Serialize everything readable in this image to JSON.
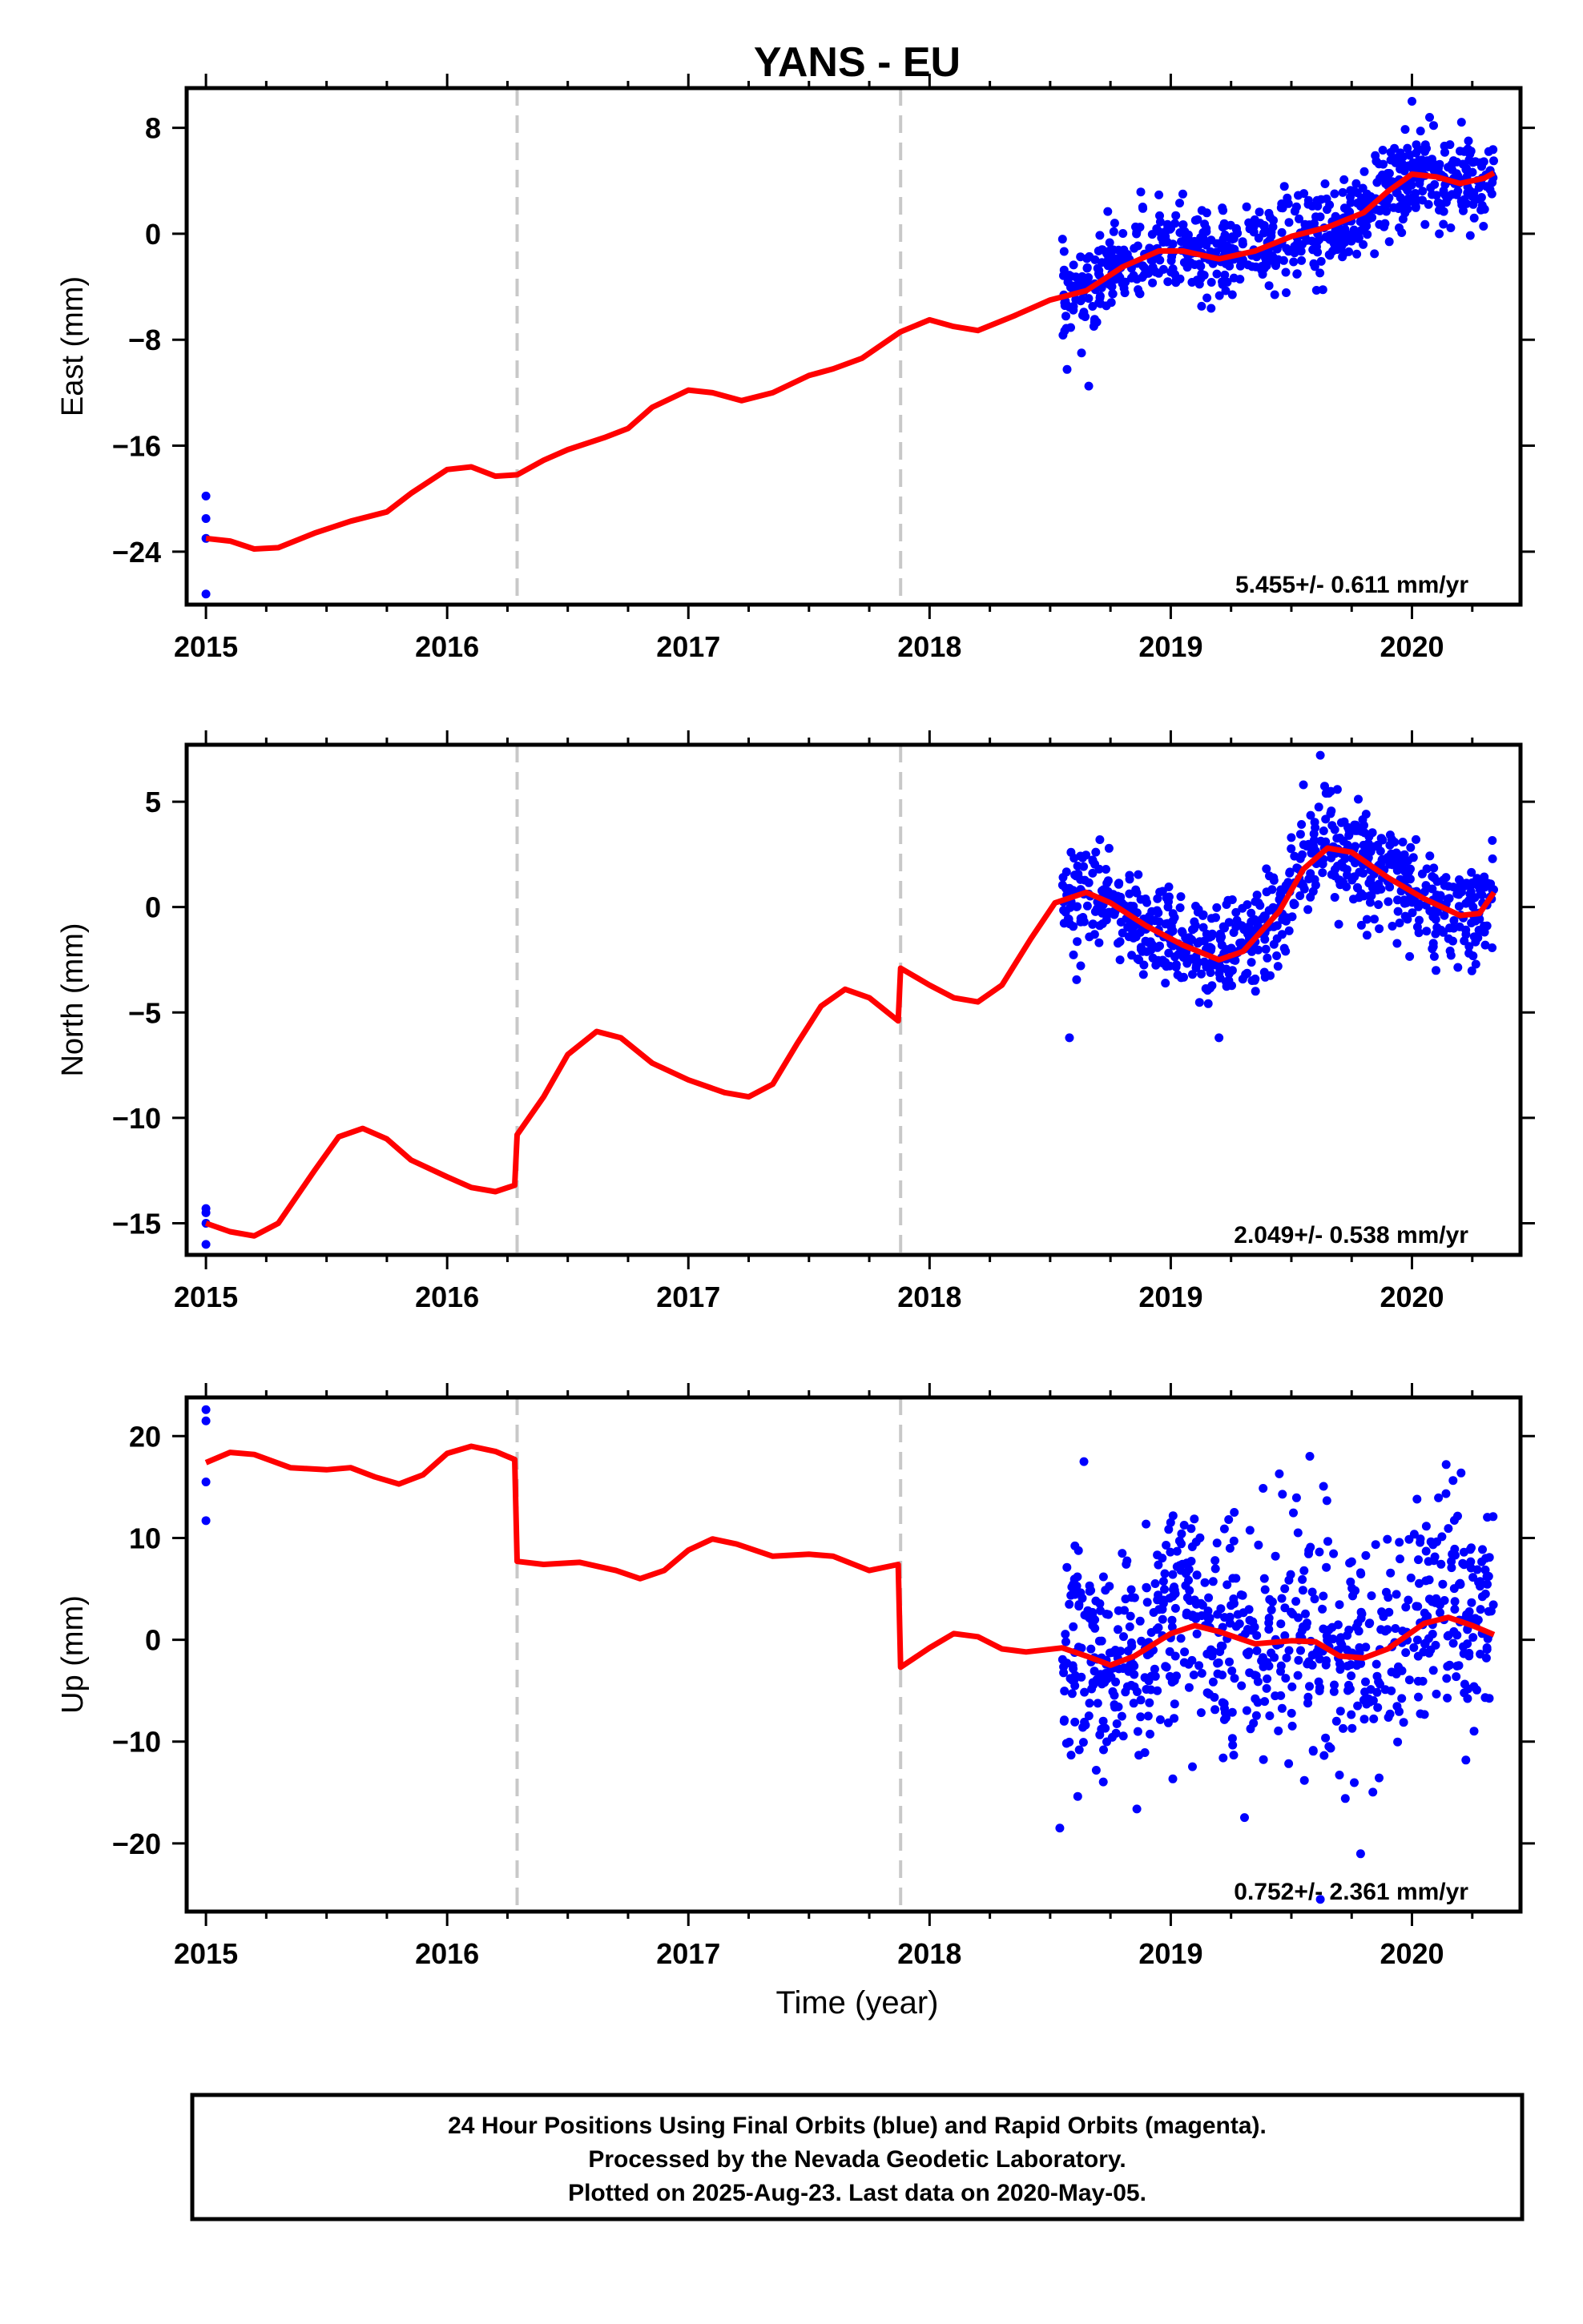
{
  "title": "YANS - EU",
  "xlabel": "Time (year)",
  "colors": {
    "final_orbits": "#0000ff",
    "model": "#ff0000",
    "offset_line": "#c8c8c8",
    "frame": "#000000"
  },
  "caption": [
    "24 Hour Positions Using Final Orbits (blue) and Rapid Orbits (magenta).",
    "Processed by the Nevada Geodetic Laboratory.",
    "Plotted on 2025-Aug-23. Last data on 2020-May-05."
  ],
  "chart_data": [
    {
      "type": "scatter",
      "component": "east",
      "ylabel": "East (mm)",
      "rate_label": "5.455+/- 0.611 mm/yr",
      "xlim": [
        2014.92,
        2020.45
      ],
      "ylim": [
        -28,
        11
      ],
      "x_ticks": [
        "2015",
        "2016",
        "2017",
        "2018",
        "2019",
        "2020"
      ],
      "y_ticks": [
        "8",
        "0",
        "−8",
        "−16",
        "−24"
      ],
      "y_tick_values": [
        8,
        0,
        -8,
        -16,
        -24
      ],
      "offsets": [
        2016.29,
        2017.88
      ],
      "data_start": 2018.55,
      "data_end": 2020.34,
      "early_points": [
        [
          2015.0,
          -19.8
        ],
        [
          2015.0,
          -21.5
        ],
        [
          2015.0,
          -23.0
        ],
        [
          2015.0,
          -27.2
        ]
      ],
      "spread": 1.6,
      "outliers": [
        [
          2018.66,
          -11.5
        ],
        [
          2018.63,
          -9.0
        ],
        [
          2020.0,
          10.0
        ],
        [
          2019.05,
          3.0
        ]
      ],
      "model": [
        [
          2015.0,
          -23.0
        ],
        [
          2015.1,
          -23.2
        ],
        [
          2015.2,
          -23.8
        ],
        [
          2015.3,
          -23.7
        ],
        [
          2015.45,
          -22.6
        ],
        [
          2015.6,
          -21.7
        ],
        [
          2015.75,
          -21.0
        ],
        [
          2015.85,
          -19.6
        ],
        [
          2016.0,
          -17.8
        ],
        [
          2016.1,
          -17.6
        ],
        [
          2016.2,
          -18.3
        ],
        [
          2016.29,
          -18.2
        ],
        [
          2016.4,
          -17.1
        ],
        [
          2016.5,
          -16.3
        ],
        [
          2016.65,
          -15.4
        ],
        [
          2016.75,
          -14.7
        ],
        [
          2016.85,
          -13.1
        ],
        [
          2017.0,
          -11.8
        ],
        [
          2017.1,
          -12.0
        ],
        [
          2017.22,
          -12.6
        ],
        [
          2017.35,
          -12.0
        ],
        [
          2017.5,
          -10.7
        ],
        [
          2017.6,
          -10.2
        ],
        [
          2017.72,
          -9.4
        ],
        [
          2017.88,
          -7.4
        ],
        [
          2018.0,
          -6.5
        ],
        [
          2018.1,
          -7.0
        ],
        [
          2018.2,
          -7.3
        ],
        [
          2018.35,
          -6.2
        ],
        [
          2018.5,
          -5.0
        ],
        [
          2018.65,
          -4.3
        ],
        [
          2018.8,
          -2.5
        ],
        [
          2018.95,
          -1.3
        ],
        [
          2019.05,
          -1.3
        ],
        [
          2019.2,
          -1.9
        ],
        [
          2019.35,
          -1.3
        ],
        [
          2019.5,
          -0.2
        ],
        [
          2019.65,
          0.5
        ],
        [
          2019.8,
          1.6
        ],
        [
          2019.9,
          3.2
        ],
        [
          2020.0,
          4.5
        ],
        [
          2020.1,
          4.3
        ],
        [
          2020.2,
          3.8
        ],
        [
          2020.3,
          4.2
        ],
        [
          2020.34,
          4.6
        ]
      ]
    },
    {
      "type": "scatter",
      "component": "north",
      "ylabel": "North (mm)",
      "rate_label": "2.049+/- 0.538 mm/yr",
      "xlim": [
        2014.92,
        2020.45
      ],
      "ylim": [
        -16.5,
        7.7
      ],
      "x_ticks": [
        "2015",
        "2016",
        "2017",
        "2018",
        "2019",
        "2020"
      ],
      "y_ticks": [
        "5",
        "0",
        "−5",
        "−10",
        "−15"
      ],
      "y_tick_values": [
        5,
        0,
        -5,
        -10,
        -15
      ],
      "offsets": [
        2016.29,
        2017.88
      ],
      "data_start": 2018.55,
      "data_end": 2020.34,
      "early_points": [
        [
          2015.0,
          -14.3
        ],
        [
          2015.0,
          -14.5
        ],
        [
          2015.0,
          -15.0
        ],
        [
          2015.0,
          -16.0
        ]
      ],
      "spread": 1.2,
      "outliers": [
        [
          2018.58,
          -6.2
        ],
        [
          2019.2,
          -6.2
        ],
        [
          2019.62,
          7.2
        ],
        [
          2019.55,
          5.8
        ]
      ],
      "model": [
        [
          2015.0,
          -15.0
        ],
        [
          2015.1,
          -15.4
        ],
        [
          2015.2,
          -15.6
        ],
        [
          2015.3,
          -15.0
        ],
        [
          2015.45,
          -12.5
        ],
        [
          2015.55,
          -10.9
        ],
        [
          2015.65,
          -10.5
        ],
        [
          2015.75,
          -11.0
        ],
        [
          2015.85,
          -12.0
        ],
        [
          2016.0,
          -12.8
        ],
        [
          2016.1,
          -13.3
        ],
        [
          2016.2,
          -13.5
        ],
        [
          2016.28,
          -13.2
        ],
        [
          2016.29,
          -10.8
        ],
        [
          2016.4,
          -9.0
        ],
        [
          2016.5,
          -7.0
        ],
        [
          2016.62,
          -5.9
        ],
        [
          2016.72,
          -6.2
        ],
        [
          2016.85,
          -7.4
        ],
        [
          2017.0,
          -8.2
        ],
        [
          2017.15,
          -8.8
        ],
        [
          2017.25,
          -9.0
        ],
        [
          2017.35,
          -8.4
        ],
        [
          2017.45,
          -6.5
        ],
        [
          2017.55,
          -4.7
        ],
        [
          2017.65,
          -3.9
        ],
        [
          2017.75,
          -4.3
        ],
        [
          2017.87,
          -5.4
        ],
        [
          2017.88,
          -2.9
        ],
        [
          2018.0,
          -3.7
        ],
        [
          2018.1,
          -4.3
        ],
        [
          2018.2,
          -4.5
        ],
        [
          2018.3,
          -3.7
        ],
        [
          2018.42,
          -1.5
        ],
        [
          2018.52,
          0.2
        ],
        [
          2018.65,
          0.7
        ],
        [
          2018.75,
          0.2
        ],
        [
          2018.9,
          -0.9
        ],
        [
          2019.05,
          -1.8
        ],
        [
          2019.2,
          -2.5
        ],
        [
          2019.3,
          -2.1
        ],
        [
          2019.45,
          -0.2
        ],
        [
          2019.55,
          1.8
        ],
        [
          2019.65,
          2.8
        ],
        [
          2019.75,
          2.6
        ],
        [
          2019.9,
          1.4
        ],
        [
          2020.05,
          0.4
        ],
        [
          2020.2,
          -0.4
        ],
        [
          2020.28,
          -0.3
        ],
        [
          2020.34,
          0.7
        ]
      ]
    },
    {
      "type": "scatter",
      "component": "up",
      "ylabel": "Up (mm)",
      "rate_label": "0.752+/- 2.361 mm/yr",
      "xlim": [
        2014.92,
        2020.45
      ],
      "ylim": [
        -26.7,
        23.8
      ],
      "x_ticks": [
        "2015",
        "2016",
        "2017",
        "2018",
        "2019",
        "2020"
      ],
      "y_ticks": [
        "20",
        "10",
        "0",
        "−10",
        "−20"
      ],
      "y_tick_values": [
        20,
        10,
        0,
        -10,
        -20
      ],
      "offsets": [
        2016.29,
        2017.88
      ],
      "data_start": 2018.55,
      "data_end": 2020.34,
      "early_points": [
        [
          2015.0,
          22.6
        ],
        [
          2015.0,
          21.5
        ],
        [
          2015.0,
          15.5
        ],
        [
          2015.0,
          11.7
        ]
      ],
      "spread": 5.8,
      "outliers": [
        [
          2018.64,
          17.5
        ],
        [
          2019.45,
          16.3
        ],
        [
          2019.62,
          -25.5
        ],
        [
          2018.54,
          -18.5
        ]
      ],
      "model": [
        [
          2015.0,
          17.4
        ],
        [
          2015.1,
          18.4
        ],
        [
          2015.2,
          18.2
        ],
        [
          2015.35,
          16.9
        ],
        [
          2015.5,
          16.7
        ],
        [
          2015.6,
          16.9
        ],
        [
          2015.7,
          16.0
        ],
        [
          2015.8,
          15.3
        ],
        [
          2015.9,
          16.2
        ],
        [
          2016.0,
          18.3
        ],
        [
          2016.1,
          19.0
        ],
        [
          2016.2,
          18.5
        ],
        [
          2016.28,
          17.7
        ],
        [
          2016.29,
          7.7
        ],
        [
          2016.4,
          7.4
        ],
        [
          2016.55,
          7.6
        ],
        [
          2016.7,
          6.8
        ],
        [
          2016.8,
          6.0
        ],
        [
          2016.9,
          6.8
        ],
        [
          2017.0,
          8.8
        ],
        [
          2017.1,
          9.9
        ],
        [
          2017.2,
          9.4
        ],
        [
          2017.35,
          8.2
        ],
        [
          2017.5,
          8.4
        ],
        [
          2017.6,
          8.2
        ],
        [
          2017.75,
          6.8
        ],
        [
          2017.87,
          7.4
        ],
        [
          2017.88,
          -2.7
        ],
        [
          2018.0,
          -0.8
        ],
        [
          2018.1,
          0.6
        ],
        [
          2018.2,
          0.3
        ],
        [
          2018.3,
          -0.9
        ],
        [
          2018.4,
          -1.2
        ],
        [
          2018.55,
          -0.8
        ],
        [
          2018.65,
          -1.6
        ],
        [
          2018.75,
          -2.5
        ],
        [
          2018.85,
          -1.6
        ],
        [
          2019.0,
          0.6
        ],
        [
          2019.1,
          1.4
        ],
        [
          2019.2,
          0.8
        ],
        [
          2019.35,
          -0.4
        ],
        [
          2019.5,
          -0.1
        ],
        [
          2019.6,
          -0.2
        ],
        [
          2019.7,
          -1.6
        ],
        [
          2019.8,
          -1.8
        ],
        [
          2019.9,
          -0.9
        ],
        [
          2020.05,
          1.6
        ],
        [
          2020.15,
          2.2
        ],
        [
          2020.25,
          1.4
        ],
        [
          2020.34,
          0.5
        ]
      ]
    }
  ]
}
